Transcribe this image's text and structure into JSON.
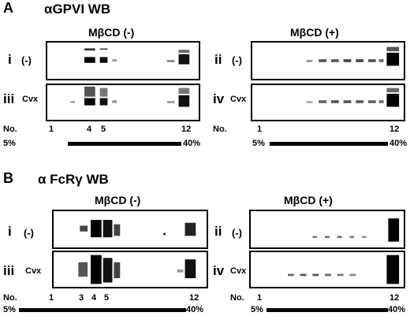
{
  "panelA": {
    "letter": "A",
    "title": "αGPVI WB",
    "left": {
      "condition": "MβCD (-)",
      "rows": [
        {
          "roman": "i",
          "treatment": "(-)"
        },
        {
          "roman": "iii",
          "treatment": "Cvx"
        }
      ],
      "no_label": "No.",
      "fractions": [
        "1",
        "4",
        "5",
        "12"
      ],
      "gradient_start": "5%",
      "gradient_end": "40%"
    },
    "right": {
      "condition": "MβCD (+)",
      "rows": [
        {
          "roman": "ii",
          "treatment": "(-)"
        },
        {
          "roman": "iv",
          "treatment": "Cvx"
        }
      ],
      "no_label": "No.",
      "fractions": [
        "1",
        "12"
      ],
      "gradient_start": "5%",
      "gradient_end": "40%"
    }
  },
  "panelB": {
    "letter": "B",
    "title": "α FcRγ WB",
    "left": {
      "condition": "MβCD (-)",
      "rows": [
        {
          "roman": "i",
          "treatment": "(-)"
        },
        {
          "roman": "iii",
          "treatment": "Cvx"
        }
      ],
      "no_label": "No.",
      "fractions": [
        "1",
        "3",
        "4",
        "5",
        "12"
      ],
      "gradient_start": "5%",
      "gradient_end": "40%"
    },
    "right": {
      "condition": "MβCD (+)",
      "rows": [
        {
          "roman": "ii",
          "treatment": "(-)"
        },
        {
          "roman": "iv",
          "treatment": "Cvx"
        }
      ],
      "no_label": "No.",
      "fractions": [
        "1",
        "12"
      ],
      "gradient_start": "5%",
      "gradient_end": "40%"
    }
  }
}
